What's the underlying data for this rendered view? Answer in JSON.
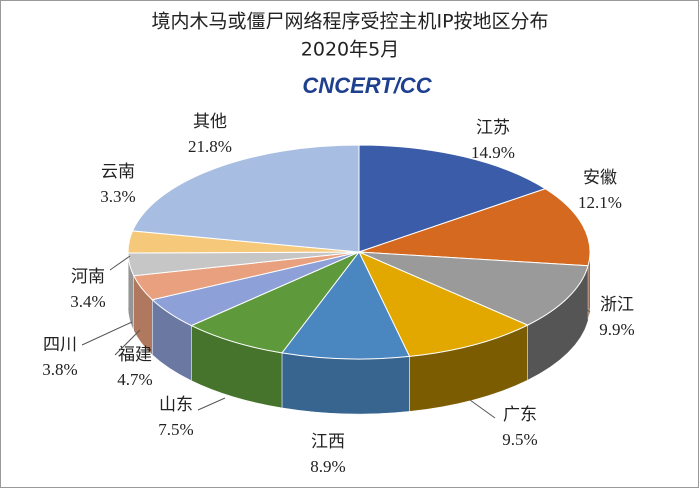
{
  "chart_data": {
    "type": "pie3d",
    "title": "境内木马或僵尸网络程序受控主机IP按地区分布",
    "subtitle": "2020年5月",
    "logo": "CNCERT/CC",
    "categories": [
      "江苏",
      "安徽",
      "浙江",
      "广东",
      "江西",
      "山东",
      "福建",
      "四川",
      "河南",
      "云南",
      "其他"
    ],
    "values": [
      14.9,
      12.1,
      9.9,
      9.5,
      8.9,
      7.5,
      4.7,
      3.8,
      3.4,
      3.3,
      21.8
    ],
    "value_labels": [
      "14.9%",
      "12.1%",
      "9.9%",
      "9.5%",
      "8.9%",
      "7.5%",
      "4.7%",
      "3.8%",
      "3.4%",
      "3.3%",
      "21.8%"
    ],
    "colors": [
      "#3b5da9",
      "#d4691f",
      "#9a9a9a",
      "#e2a800",
      "#4a86c0",
      "#5e9a3c",
      "#8da0d8",
      "#e9a07f",
      "#c6c6c6",
      "#f6c97a",
      "#a7bee2"
    ]
  }
}
